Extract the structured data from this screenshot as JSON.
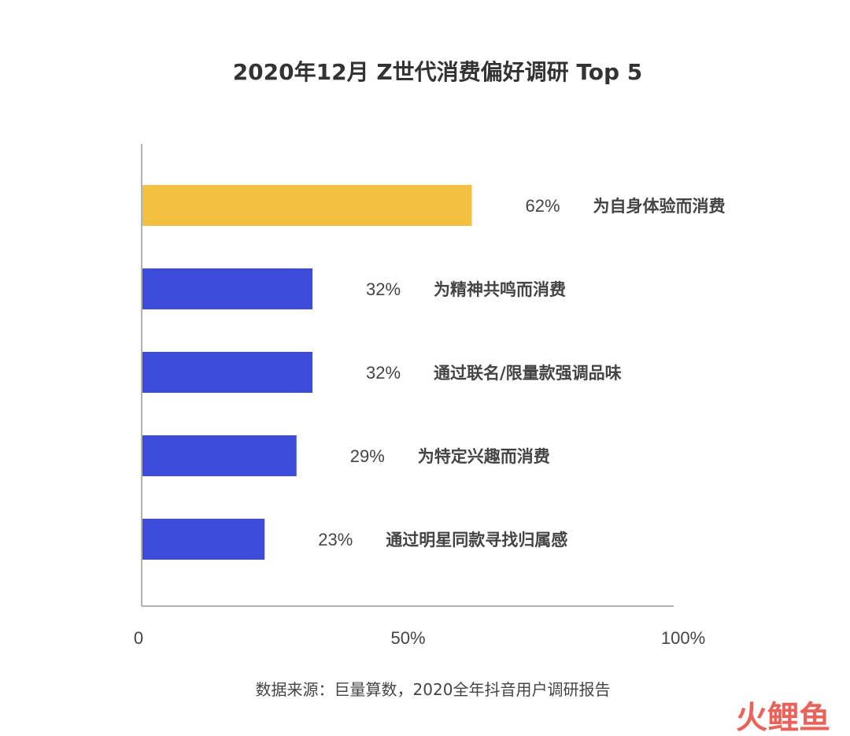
{
  "chart_data": {
    "type": "bar",
    "orientation": "horizontal",
    "title": "2020年12月 Z世代消费偏好调研 Top 5",
    "categories": [
      "为自身体验而消费",
      "为精神共鸣而消费",
      "通过联名/限量款强调品味",
      "为特定兴趣而消费",
      "通过明星同款寻找归属感"
    ],
    "values": [
      62,
      32,
      32,
      29,
      23
    ],
    "value_labels": [
      "62%",
      "32%",
      "32%",
      "29%",
      "23%"
    ],
    "xlim": [
      0,
      100
    ],
    "x_ticks": [
      "0",
      "50%",
      "100%"
    ],
    "highlight_color": "#F4C042",
    "bar_color": "#3D4BDB",
    "grid": false,
    "legend": "none"
  },
  "source": "数据来源：巨量算数，2020全年抖音用户调研报告",
  "watermark": "火鲤鱼"
}
